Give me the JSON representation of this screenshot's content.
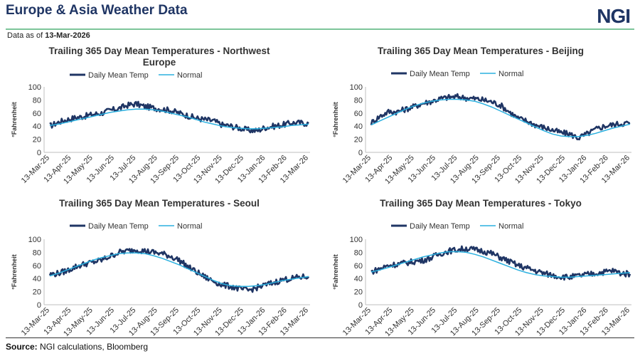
{
  "header": {
    "title": "Europe & Asia Weather Data",
    "logo": "NGI",
    "as_of_label": "Data as of",
    "as_of_date": "13-Mar-2026"
  },
  "footer": {
    "source_label": "Source:",
    "source_text": "NGI calculations, Bloomberg"
  },
  "colors": {
    "daily": "#1f3564",
    "normal": "#2bb0df",
    "accent": "#7dc59a"
  },
  "chart_data": [
    {
      "type": "line",
      "title": "Trailing 365 Day Mean Temperatures - Northwest Europe",
      "ylabel": "°Fahrenheit",
      "ylim": [
        0,
        100
      ],
      "yticks": [
        0,
        20,
        40,
        60,
        80,
        100
      ],
      "grid": false,
      "legend": "top",
      "x_ticks": [
        "13-Mar-25",
        "13-Apr-25",
        "13-May-25",
        "13-Jun-25",
        "13-Jul-25",
        "13-Aug-25",
        "13-Sep-25",
        "13-Oct-25",
        "13-Nov-25",
        "13-Dec-25",
        "13-Jan-26",
        "13-Feb-26",
        "13-Mar-26"
      ],
      "series": [
        {
          "name": "Daily Mean Temp",
          "values": [
            40,
            46,
            50,
            53,
            55,
            58,
            60,
            64,
            67,
            72,
            74,
            70,
            68,
            66,
            64,
            60,
            56,
            52,
            50,
            48,
            42,
            40,
            37,
            34,
            33,
            38,
            40,
            42,
            45,
            45,
            44
          ]
        },
        {
          "name": "Normal",
          "values": [
            41,
            43,
            46,
            49,
            52,
            55,
            58,
            61,
            63,
            65,
            66,
            66,
            65,
            63,
            60,
            57,
            54,
            50,
            46,
            43,
            40,
            38,
            37,
            36,
            36,
            37,
            38,
            39,
            41,
            42,
            43
          ]
        }
      ]
    },
    {
      "type": "line",
      "title": "Trailing 365 Day Mean Temperatures - Beijing",
      "ylabel": "°Fahrenheit",
      "ylim": [
        0,
        100
      ],
      "yticks": [
        0,
        20,
        40,
        60,
        80,
        100
      ],
      "grid": false,
      "legend": "top",
      "x_ticks": [
        "13-Mar-25",
        "13-Apr-25",
        "13-May-25",
        "13-Jun-25",
        "13-Jul-25",
        "13-Aug-25",
        "13-Sep-25",
        "13-Oct-25",
        "13-Nov-25",
        "13-Dec-25",
        "13-Jan-26",
        "13-Feb-26",
        "13-Mar-26"
      ],
      "series": [
        {
          "name": "Daily Mean Temp",
          "values": [
            45,
            55,
            62,
            62,
            66,
            70,
            75,
            78,
            82,
            84,
            85,
            83,
            82,
            80,
            77,
            72,
            62,
            52,
            48,
            42,
            38,
            34,
            30,
            28,
            22,
            28,
            35,
            40,
            42,
            44,
            45
          ]
        },
        {
          "name": "Normal",
          "values": [
            42,
            48,
            54,
            60,
            66,
            71,
            75,
            78,
            80,
            81,
            81,
            80,
            78,
            74,
            69,
            63,
            57,
            51,
            45,
            39,
            33,
            28,
            25,
            24,
            24,
            26,
            29,
            33,
            37,
            40,
            43
          ]
        }
      ]
    },
    {
      "type": "line",
      "title": "Trailing 365 Day Mean Temperatures - Seoul",
      "ylabel": "°Fahrenheit",
      "ylim": [
        0,
        100
      ],
      "yticks": [
        0,
        20,
        40,
        60,
        80,
        100
      ],
      "grid": false,
      "legend": "top",
      "x_ticks": [
        "13-Mar-25",
        "13-Apr-25",
        "13-May-25",
        "13-Jun-25",
        "13-Jul-25",
        "13-Aug-25",
        "13-Sep-25",
        "13-Oct-25",
        "13-Nov-25",
        "13-Dec-25",
        "13-Jan-26",
        "13-Feb-26",
        "13-Mar-26"
      ],
      "series": [
        {
          "name": "Daily Mean Temp",
          "values": [
            46,
            48,
            52,
            58,
            62,
            65,
            68,
            74,
            80,
            82,
            84,
            82,
            80,
            78,
            74,
            68,
            58,
            50,
            42,
            36,
            30,
            28,
            24,
            22,
            26,
            30,
            34,
            38,
            40,
            42,
            43
          ]
        },
        {
          "name": "Normal",
          "values": [
            44,
            48,
            53,
            58,
            63,
            68,
            72,
            75,
            78,
            79,
            79,
            78,
            75,
            71,
            66,
            61,
            55,
            49,
            43,
            37,
            32,
            29,
            28,
            28,
            29,
            31,
            34,
            37,
            39,
            41,
            43
          ]
        }
      ]
    },
    {
      "type": "line",
      "title": "Trailing 365 Day Mean Temperatures - Tokyo",
      "ylabel": "°Fahrenheit",
      "ylim": [
        0,
        100
      ],
      "yticks": [
        0,
        20,
        40,
        60,
        80,
        100
      ],
      "grid": false,
      "legend": "top",
      "x_ticks": [
        "13-Mar-25",
        "13-Apr-25",
        "13-May-25",
        "13-Jun-25",
        "13-Jul-25",
        "13-Aug-25",
        "13-Sep-25",
        "13-Oct-25",
        "13-Nov-25",
        "13-Dec-25",
        "13-Jan-26",
        "13-Feb-26",
        "13-Mar-26"
      ],
      "series": [
        {
          "name": "Daily Mean Temp",
          "values": [
            50,
            55,
            60,
            62,
            64,
            66,
            68,
            72,
            78,
            82,
            84,
            86,
            84,
            82,
            78,
            72,
            66,
            60,
            56,
            52,
            48,
            45,
            43,
            42,
            44,
            46,
            48,
            50,
            52,
            48,
            47
          ]
        },
        {
          "name": "Normal",
          "values": [
            50,
            53,
            57,
            61,
            65,
            69,
            73,
            76,
            79,
            81,
            81,
            80,
            77,
            73,
            68,
            63,
            58,
            53,
            49,
            46,
            44,
            43,
            42,
            42,
            43,
            44,
            45,
            46,
            47,
            48,
            49
          ]
        }
      ]
    }
  ]
}
